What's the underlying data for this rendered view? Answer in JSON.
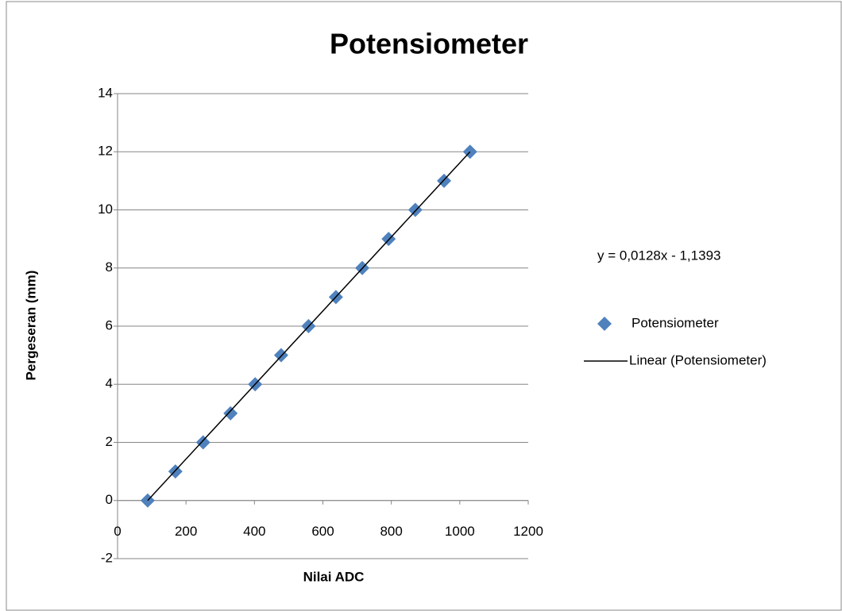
{
  "chart_data": {
    "type": "scatter",
    "title": "Potensiometer",
    "x_label": "Nilai ADC",
    "y_label": "Pergeseran (mm)",
    "annotation": "y = 0,0128x - 1,1393",
    "series": [
      {
        "name": "Potensiometer",
        "color": "#4f81bd",
        "marker": "diamond",
        "x": [
          88,
          169,
          250,
          330,
          402,
          478,
          558,
          638,
          715,
          792,
          870,
          954,
          1030
        ],
        "values": [
          0,
          1,
          2,
          3,
          4,
          5,
          6,
          7,
          8,
          9,
          10,
          11,
          12
        ]
      },
      {
        "name": "Linear (Potensiometer)",
        "color": "#000000",
        "marker": "line",
        "x": [
          88,
          1030
        ],
        "values": [
          0,
          12
        ]
      }
    ],
    "xlim": [
      0,
      1200
    ],
    "xticks": [
      0,
      200,
      400,
      600,
      800,
      1000,
      1200
    ],
    "ylim": [
      -2,
      14
    ],
    "yticks": [
      -2,
      0,
      2,
      4,
      6,
      8,
      10,
      12,
      14
    ],
    "grid": true
  }
}
